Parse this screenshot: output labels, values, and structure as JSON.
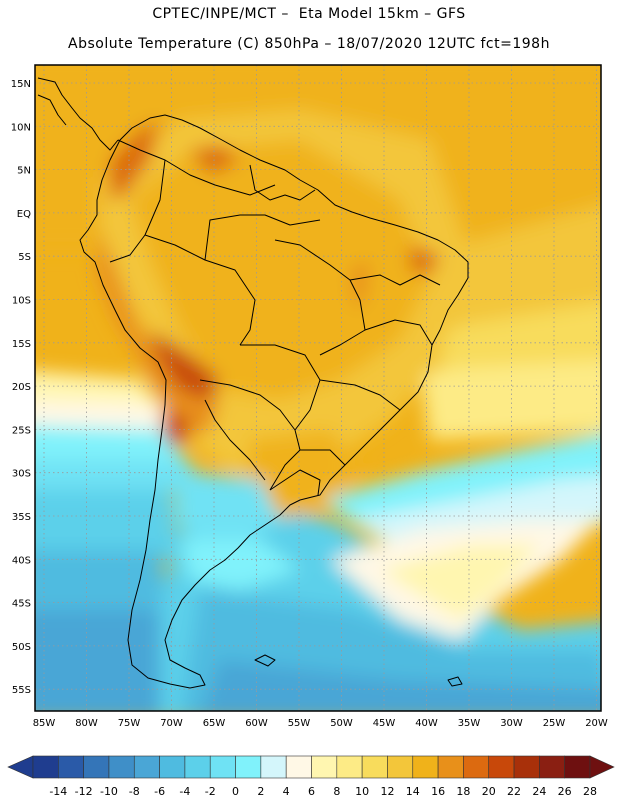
{
  "header": {
    "line1": "CPTEC/INPE/MCT –  Eta Model 15km – GFS",
    "line2": "Absolute Temperature (C) 850hPa – 18/07/2020 12UTC fct=198h"
  },
  "map": {
    "lat_labels": [
      "15N",
      "10N",
      "5N",
      "EQ",
      "5S",
      "10S",
      "15S",
      "20S",
      "25S",
      "30S",
      "35S",
      "40S",
      "45S",
      "50S",
      "55S"
    ],
    "lon_labels": [
      "85W",
      "80W",
      "75W",
      "70W",
      "65W",
      "60W",
      "55W",
      "50W",
      "45W",
      "40W",
      "35W",
      "30W",
      "25W",
      "20W"
    ]
  },
  "colorbar": {
    "labels": [
      "-14",
      "-12",
      "-10",
      "-8",
      "-6",
      "-4",
      "-2",
      "0",
      "2",
      "4",
      "6",
      "8",
      "10",
      "12",
      "14",
      "16",
      "18",
      "20",
      "22",
      "24",
      "26",
      "28"
    ],
    "colors": [
      "#1f3d8f",
      "#2a5aa8",
      "#3475b8",
      "#3f8fc8",
      "#4aa6d6",
      "#4fbbe0",
      "#5cd0ea",
      "#6fe2f4",
      "#80f2fb",
      "#d4f6fb",
      "#fff8e6",
      "#fff6b0",
      "#fdeb86",
      "#f8dc5c",
      "#f3c63a",
      "#f0b21a",
      "#e8901a",
      "#dc6a10",
      "#c8480a",
      "#a8300a",
      "#8a1f12",
      "#6e1010"
    ]
  }
}
